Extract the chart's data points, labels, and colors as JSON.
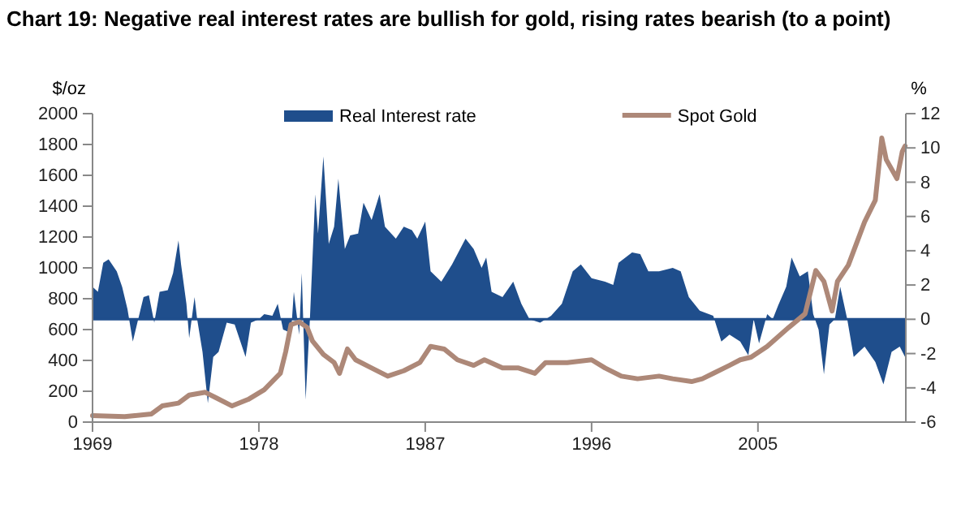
{
  "chart_data": {
    "type": "line",
    "title": "Chart 19: Negative real interest rates are bullish for gold, rising rates bearish (to a point)",
    "ylabel": "$/oz",
    "y2label": "%",
    "xlim": [
      1969,
      2013
    ],
    "xticks": [
      1969,
      1978,
      1987,
      1996,
      2005
    ],
    "ylim": [
      0,
      2000
    ],
    "yticks": [
      0,
      200,
      400,
      600,
      800,
      1000,
      1200,
      1400,
      1600,
      1800,
      2000
    ],
    "y2lim": [
      -6,
      12
    ],
    "y2ticks": [
      -6,
      -4,
      -2,
      0,
      2,
      4,
      6,
      8,
      10,
      12
    ],
    "legend": "top",
    "grid": false,
    "ref_lines": [
      {
        "axis": "y2",
        "value": 0,
        "color": "#1f4e8c"
      }
    ],
    "series": [
      {
        "name": "Real Interest rate",
        "type": "area",
        "axis": "y2",
        "color": "#1f4e8c",
        "x": [
          1969.0,
          1969.29,
          1969.58,
          1969.87,
          1970.31,
          1970.6,
          1970.89,
          1971.18,
          1971.47,
          1971.76,
          1972.05,
          1972.34,
          1972.63,
          1973.07,
          1973.36,
          1973.65,
          1973.79,
          1974.08,
          1974.23,
          1974.52,
          1974.66,
          1974.95,
          1975.24,
          1975.53,
          1975.82,
          1976.26,
          1976.69,
          1977.28,
          1977.57,
          1978.0,
          1978.29,
          1978.73,
          1979.02,
          1979.31,
          1979.74,
          1979.89,
          1980.18,
          1980.32,
          1980.53,
          1980.76,
          1981.05,
          1981.2,
          1981.49,
          1981.78,
          1982.07,
          1982.3,
          1982.65,
          1982.94,
          1983.37,
          1983.66,
          1984.1,
          1984.53,
          1984.82,
          1985.41,
          1985.84,
          1986.28,
          1986.57,
          1987.0,
          1987.29,
          1987.87,
          1988.45,
          1989.18,
          1989.62,
          1990.05,
          1990.3,
          1990.59,
          1991.18,
          1991.76,
          1992.2,
          1992.64,
          1993.22,
          1993.81,
          1994.39,
          1994.98,
          1995.42,
          1996,
          1996.73,
          1997.17,
          1997.46,
          1998.19,
          1998.63,
          1999.07,
          1999.65,
          2000.39,
          2000.82,
          2001.26,
          2001.85,
          2002.58,
          2003.02,
          2003.46,
          2004.04,
          2004.48,
          2004.77,
          2005.06,
          2005.5,
          2005.8,
          2006.09,
          2006.53,
          2006.82,
          2007.26,
          2007.7,
          2007.99,
          2008.28,
          2008.57,
          2008.87,
          2009.16,
          2009.45,
          2009.83,
          2010.18,
          2010.77,
          2011.35,
          2011.79,
          2012.23,
          2012.67,
          2012.96
        ],
        "values": [
          1.9,
          1.6,
          3.3,
          3.5,
          2.8,
          1.9,
          0.6,
          -1.3,
          0,
          1.3,
          1.4,
          -0.2,
          1.6,
          1.7,
          2.7,
          4.6,
          3.2,
          0.9,
          -1.1,
          1.3,
          0,
          -1.9,
          -4.9,
          -2.2,
          -1.9,
          -0.2,
          -0.3,
          -2.2,
          -0.2,
          0,
          0.3,
          0.2,
          0.9,
          -0.6,
          -0.8,
          1.6,
          -0.9,
          2.7,
          -4.7,
          0,
          7.3,
          5,
          9.5,
          4.4,
          5.4,
          8.2,
          4.1,
          4.9,
          5,
          6.8,
          5.8,
          7.3,
          5.4,
          4.7,
          5.4,
          5.2,
          4.7,
          5.7,
          2.8,
          2.2,
          3.2,
          4.7,
          4.1,
          3,
          3.6,
          1.6,
          1.3,
          2.2,
          0.9,
          0,
          -0.2,
          0.2,
          0.9,
          2.8,
          3.2,
          2.4,
          2.2,
          2,
          3.3,
          3.9,
          3.8,
          2.8,
          2.8,
          3,
          2.8,
          1.3,
          0.5,
          0.2,
          -1.3,
          -0.9,
          -1.3,
          -2.1,
          0,
          -1.4,
          0.3,
          0,
          0.8,
          1.9,
          3.6,
          2.5,
          2.8,
          0.3,
          -0.6,
          -3.2,
          -0.3,
          0,
          1.9,
          0,
          -2.2,
          -1.6,
          -2.5,
          -3.8,
          -1.9,
          -1.6,
          -2.2
        ]
      },
      {
        "name": "Spot Gold",
        "axis": "y",
        "color": "#ad8878",
        "x": [
          1969.0,
          1970.74,
          1972.19,
          1972.77,
          1973.65,
          1974.23,
          1975.1,
          1975.68,
          1976.55,
          1977.42,
          1978.29,
          1979.16,
          1979.45,
          1979.74,
          1980.18,
          1980.61,
          1980.9,
          1981.49,
          1982.07,
          1982.36,
          1982.79,
          1983.23,
          1984.1,
          1984.97,
          1985.84,
          1986.71,
          1987.29,
          1988.02,
          1988.74,
          1989.62,
          1990.2,
          1991.18,
          1992.05,
          1992.93,
          1993.51,
          1994.68,
          1996,
          1996.73,
          1997.61,
          1998.49,
          1999.65,
          2000.39,
          2001.41,
          2001.99,
          2002.58,
          2003.46,
          2004.04,
          2004.63,
          2005.5,
          2006.67,
          2007.55,
          2008.13,
          2008.57,
          2009.01,
          2009.3,
          2009.89,
          2010.77,
          2011.35,
          2011.7,
          2011.94,
          2012.52,
          2012.81,
          2012.96
        ],
        "values": [
          42,
          35,
          53,
          105,
          123,
          175,
          193,
          158,
          105,
          147,
          210,
          316,
          456,
          632,
          650,
          614,
          526,
          439,
          386,
          316,
          474,
          404,
          351,
          298,
          333,
          386,
          491,
          474,
          404,
          368,
          404,
          351,
          351,
          316,
          386,
          386,
          404,
          351,
          298,
          281,
          298,
          281,
          263,
          281,
          316,
          368,
          404,
          421,
          491,
          614,
          702,
          983,
          912,
          720,
          912,
          1018,
          1298,
          1439,
          1842,
          1702,
          1579,
          1755,
          1790
        ]
      }
    ]
  }
}
